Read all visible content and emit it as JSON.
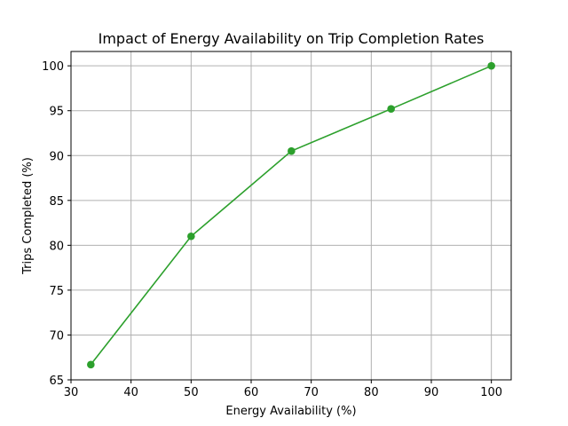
{
  "chart_data": {
    "type": "line",
    "title": "Impact of Energy Availability on Trip Completion Rates",
    "xlabel": "Energy Availability (%)",
    "ylabel": "Trips Completed (%)",
    "xlim": [
      30,
      103.3
    ],
    "ylim": [
      65,
      101.6
    ],
    "xticks": [
      30,
      40,
      50,
      60,
      70,
      80,
      90,
      100
    ],
    "yticks": [
      65,
      70,
      75,
      80,
      85,
      90,
      95,
      100
    ],
    "grid": true,
    "legend": "none",
    "series": [
      {
        "color": "#2ca02c",
        "marker": "circle",
        "x": [
          33.3,
          50.0,
          66.7,
          83.3,
          100.0
        ],
        "y": [
          66.7,
          81.0,
          90.5,
          95.2,
          100.0
        ]
      }
    ]
  }
}
